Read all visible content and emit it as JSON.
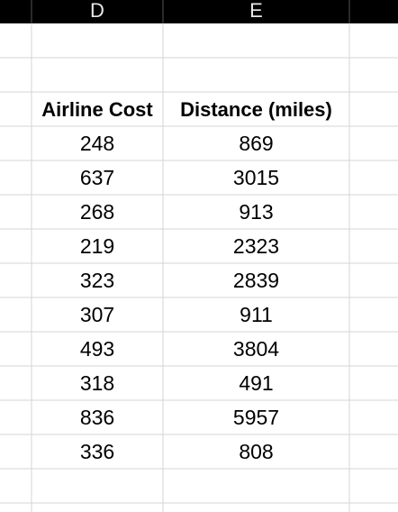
{
  "column_headers": [
    "D",
    "E"
  ],
  "table": {
    "header": [
      "Airline Cost",
      "Distance (miles)"
    ],
    "rows": [
      [
        248,
        869
      ],
      [
        637,
        3015
      ],
      [
        268,
        913
      ],
      [
        219,
        2323
      ],
      [
        323,
        2839
      ],
      [
        307,
        911
      ],
      [
        493,
        3804
      ],
      [
        318,
        491
      ],
      [
        836,
        5957
      ],
      [
        336,
        808
      ]
    ]
  }
}
